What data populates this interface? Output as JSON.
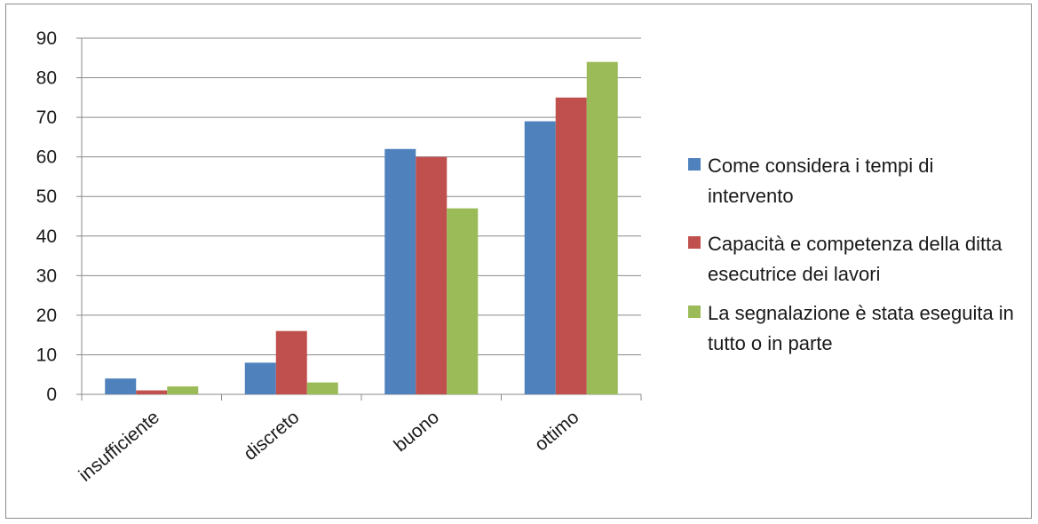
{
  "chart_data": {
    "type": "bar",
    "title": "",
    "xlabel": "",
    "ylabel": "",
    "categories": [
      "insufficiente",
      "discreto",
      "buono",
      "ottimo"
    ],
    "ylim": [
      0,
      90
    ],
    "yticks": [
      "0",
      "10",
      "20",
      "30",
      "40",
      "50",
      "60",
      "70",
      "80",
      "90"
    ],
    "grid": true,
    "legend_position": "right",
    "series": [
      {
        "name": "Come considera i tempi di intervento",
        "color": "#4f81bd",
        "values": [
          4,
          8,
          62,
          69
        ]
      },
      {
        "name": "Capacità e competenza della ditta esecutrice dei lavori",
        "color": "#c0504d",
        "values": [
          1,
          16,
          60,
          75
        ]
      },
      {
        "name": "La segnalazione è stata eseguita in tutto o in parte",
        "color": "#9bbb59",
        "values": [
          2,
          3,
          47,
          84
        ]
      }
    ]
  }
}
